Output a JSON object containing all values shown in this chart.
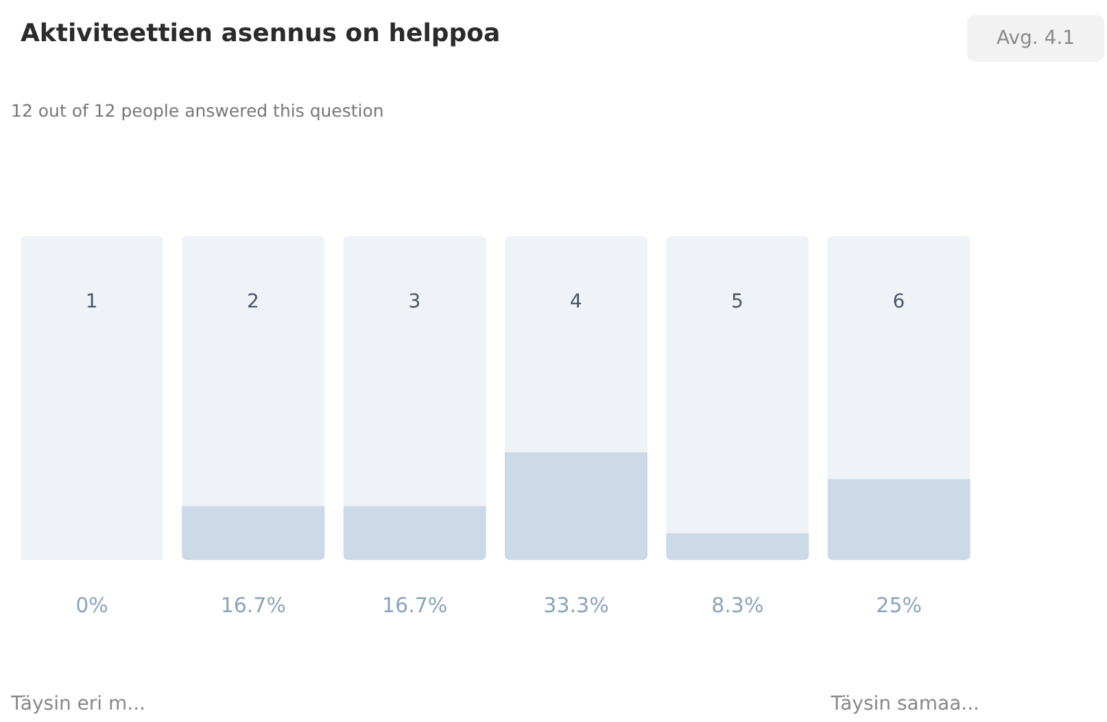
{
  "chart_data": {
    "type": "bar",
    "title": "Aktiviteettien asennus on helppoa",
    "subtitle": "12 out of 12 people answered this question",
    "annotations": [
      "Avg. 4.1",
      "Täysin eri m...",
      "Täysin samaa..."
    ],
    "categories": [
      "1",
      "2",
      "3",
      "4",
      "5",
      "6"
    ],
    "stacked": true,
    "series": [
      {
        "color": "#ccdae8",
        "values": [
          0,
          16.7,
          16.7,
          33.3,
          8.3,
          25
        ],
        "value_labels": [
          "0%",
          "16.7%",
          "16.7%",
          "33.3%",
          "8.3%",
          "25%"
        ]
      },
      {
        "color": "#eff3f8",
        "values": [
          100,
          83.3,
          83.3,
          66.7,
          91.7,
          75
        ]
      }
    ],
    "ylim": [
      0,
      100
    ],
    "tick_labels": "x",
    "grid": false,
    "legend": false
  }
}
